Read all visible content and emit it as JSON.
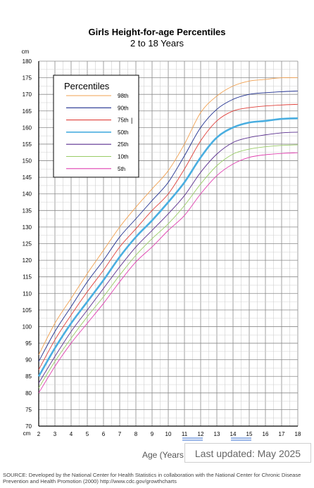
{
  "header": {
    "title": "Girls Height-for-age Percentiles",
    "subtitle": "2 to 18 Years"
  },
  "footer": {
    "updated": "Last updated: May 2025",
    "source": "SOURCE: Developed by the National Center for Health Statistics in collaboration with the National Center for Chronic Disease Prevention and Health Promotion (2000) http://www.cdc.gov/growthcharts"
  },
  "chart_data": {
    "type": "line",
    "title": "Girls Height-for-age Percentiles",
    "subtitle": "2 to 18 Years",
    "xlabel": "Age (Years",
    "ylabel": "cm",
    "ylabel_bottom": "cm",
    "xlim": [
      2,
      18
    ],
    "ylim": [
      70,
      180
    ],
    "grid": true,
    "legend_title": "Percentiles",
    "legend_placement": "top-left",
    "x": [
      2,
      3,
      4,
      5,
      6,
      7,
      8,
      9,
      10,
      11,
      12,
      13,
      14,
      15,
      16,
      17,
      18
    ],
    "series": [
      {
        "name": "98th",
        "color": "#f0a050",
        "values": [
          91.5,
          101,
          108.5,
          116,
          123,
          130,
          136,
          141.5,
          147,
          155,
          164.5,
          169.5,
          172.5,
          174,
          174.5,
          175,
          175
        ]
      },
      {
        "name": "90th",
        "color": "#1f2f8f",
        "values": [
          89.5,
          98.5,
          106,
          113.5,
          120,
          127,
          132.5,
          138,
          143.5,
          151.5,
          160,
          165.5,
          168.5,
          170,
          170.5,
          170.8,
          171
        ]
      },
      {
        "name": "75th",
        "color": "#e0403a",
        "values": [
          87,
          96,
          103.5,
          110.5,
          117,
          124,
          129.5,
          135,
          140,
          147.5,
          156,
          162,
          165,
          166,
          166.5,
          166.8,
          167
        ]
      },
      {
        "name": "50th",
        "color": "#4aaee0",
        "values": [
          85,
          93.5,
          101,
          107.5,
          114,
          121,
          127,
          132,
          137.5,
          143.5,
          151,
          157,
          160,
          161.5,
          162,
          162.6,
          162.8
        ]
      },
      {
        "name": "25th",
        "color": "#5a2f8f",
        "values": [
          83,
          91,
          98.5,
          105,
          111.5,
          118,
          124,
          129,
          134,
          139.5,
          146.5,
          152,
          155.5,
          157,
          157.8,
          158.4,
          158.6
        ]
      },
      {
        "name": "10th",
        "color": "#99cc66",
        "values": [
          81.5,
          89.5,
          96.5,
          103,
          109,
          115.5,
          121.5,
          126.5,
          131,
          136.5,
          143,
          148.5,
          152,
          153.5,
          154.2,
          154.6,
          154.8
        ]
      },
      {
        "name": "5th",
        "color": "#e040b0",
        "values": [
          80,
          88,
          95,
          101,
          107,
          113.5,
          119.5,
          124,
          129,
          133.5,
          140,
          145.5,
          149,
          151,
          151.8,
          152.2,
          152.4
        ]
      }
    ],
    "legend_marks": [
      "",
      "",
      "|",
      "",
      "",
      "",
      ""
    ],
    "y_ticks": [
      70,
      75,
      80,
      85,
      90,
      95,
      100,
      105,
      110,
      115,
      120,
      125,
      130,
      135,
      140,
      145,
      150,
      155,
      160,
      165,
      170,
      175,
      180
    ],
    "x_ticks": [
      2,
      3,
      4,
      5,
      6,
      7,
      8,
      9,
      10,
      11,
      12,
      13,
      14,
      15,
      16,
      17,
      18
    ]
  }
}
